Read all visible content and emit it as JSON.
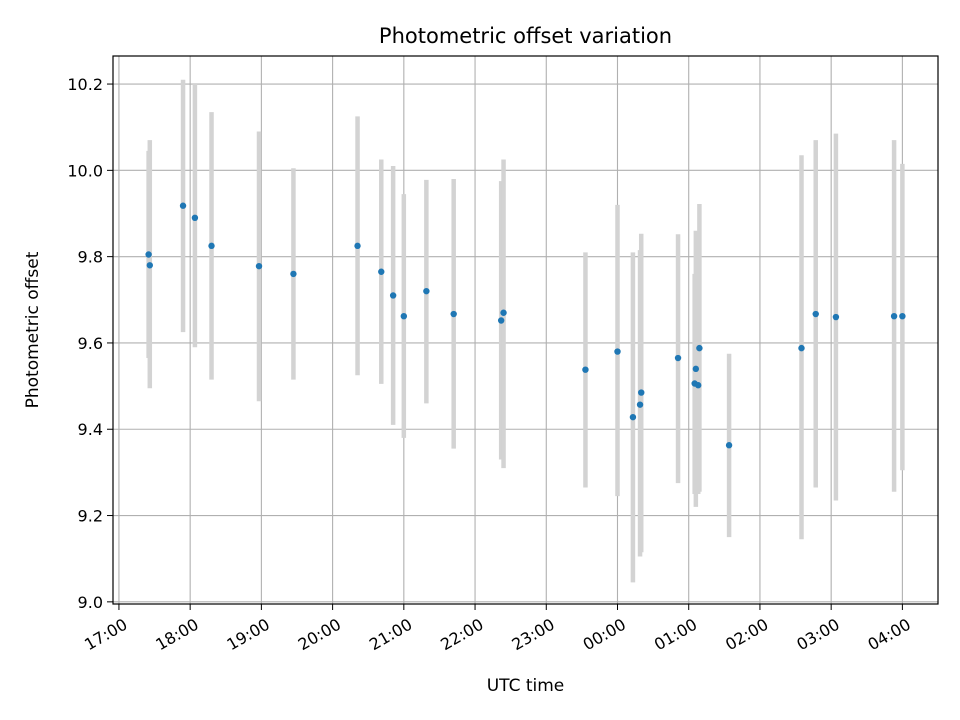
{
  "chart_data": {
    "type": "scatter",
    "title": "Photometric offset variation",
    "xlabel": "UTC time",
    "ylabel": "Photometric offset",
    "grid": true,
    "xlim": [
      "2023-01-01T16:55",
      "2023-01-02T04:30"
    ],
    "ylim": [
      8.995,
      10.265
    ],
    "x_ticks": [
      {
        "t": "2023-01-01T17:00",
        "label": "17:00"
      },
      {
        "t": "2023-01-01T18:00",
        "label": "18:00"
      },
      {
        "t": "2023-01-01T19:00",
        "label": "19:00"
      },
      {
        "t": "2023-01-01T20:00",
        "label": "20:00"
      },
      {
        "t": "2023-01-01T21:00",
        "label": "21:00"
      },
      {
        "t": "2023-01-01T22:00",
        "label": "22:00"
      },
      {
        "t": "2023-01-01T23:00",
        "label": "23:00"
      },
      {
        "t": "2023-01-02T00:00",
        "label": "00:00"
      },
      {
        "t": "2023-01-02T01:00",
        "label": "01:00"
      },
      {
        "t": "2023-01-02T02:00",
        "label": "02:00"
      },
      {
        "t": "2023-01-02T03:00",
        "label": "03:00"
      },
      {
        "t": "2023-01-02T04:00",
        "label": "04:00"
      }
    ],
    "y_ticks": [
      {
        "v": 9.0,
        "label": "9.0"
      },
      {
        "v": 9.2,
        "label": "9.2"
      },
      {
        "v": 9.4,
        "label": "9.4"
      },
      {
        "v": 9.6,
        "label": "9.6"
      },
      {
        "v": 9.8,
        "label": "9.8"
      },
      {
        "v": 10.0,
        "label": "10.0"
      },
      {
        "v": 10.2,
        "label": "10.2"
      }
    ],
    "series": [
      {
        "marker_color": "#1f77b4",
        "errorbar_color": "#d3d3d3",
        "points": [
          {
            "t": "2023-01-01T17:25",
            "y": 9.805,
            "ylow": 9.565,
            "yhigh": 10.045
          },
          {
            "t": "2023-01-01T17:26",
            "y": 9.78,
            "ylow": 9.495,
            "yhigh": 10.07
          },
          {
            "t": "2023-01-01T17:54",
            "y": 9.918,
            "ylow": 9.625,
            "yhigh": 10.21
          },
          {
            "t": "2023-01-01T18:04",
            "y": 9.89,
            "ylow": 9.59,
            "yhigh": 10.2
          },
          {
            "t": "2023-01-01T18:18",
            "y": 9.825,
            "ylow": 9.515,
            "yhigh": 10.135
          },
          {
            "t": "2023-01-01T18:58",
            "y": 9.778,
            "ylow": 9.465,
            "yhigh": 10.09
          },
          {
            "t": "2023-01-01T19:27",
            "y": 9.76,
            "ylow": 9.515,
            "yhigh": 10.005
          },
          {
            "t": "2023-01-01T20:21",
            "y": 9.825,
            "ylow": 9.525,
            "yhigh": 10.125
          },
          {
            "t": "2023-01-01T20:41",
            "y": 9.765,
            "ylow": 9.505,
            "yhigh": 10.025
          },
          {
            "t": "2023-01-01T20:51",
            "y": 9.71,
            "ylow": 9.41,
            "yhigh": 10.01
          },
          {
            "t": "2023-01-01T21:00",
            "y": 9.662,
            "ylow": 9.38,
            "yhigh": 9.945
          },
          {
            "t": "2023-01-01T21:19",
            "y": 9.72,
            "ylow": 9.46,
            "yhigh": 9.978
          },
          {
            "t": "2023-01-01T21:42",
            "y": 9.667,
            "ylow": 9.355,
            "yhigh": 9.98
          },
          {
            "t": "2023-01-01T22:22",
            "y": 9.652,
            "ylow": 9.33,
            "yhigh": 9.975
          },
          {
            "t": "2023-01-01T22:24",
            "y": 9.67,
            "ylow": 9.31,
            "yhigh": 10.025
          },
          {
            "t": "2023-01-01T23:33",
            "y": 9.538,
            "ylow": 9.265,
            "yhigh": 9.81
          },
          {
            "t": "2023-01-02T00:00",
            "y": 9.58,
            "ylow": 9.245,
            "yhigh": 9.92
          },
          {
            "t": "2023-01-02T00:13",
            "y": 9.428,
            "ylow": 9.045,
            "yhigh": 9.81
          },
          {
            "t": "2023-01-02T00:19",
            "y": 9.457,
            "ylow": 9.105,
            "yhigh": 9.815
          },
          {
            "t": "2023-01-02T00:20",
            "y": 9.485,
            "ylow": 9.115,
            "yhigh": 9.853
          },
          {
            "t": "2023-01-02T00:51",
            "y": 9.565,
            "ylow": 9.275,
            "yhigh": 9.852
          },
          {
            "t": "2023-01-02T01:05",
            "y": 9.506,
            "ylow": 9.25,
            "yhigh": 9.76
          },
          {
            "t": "2023-01-02T01:06",
            "y": 9.54,
            "ylow": 9.22,
            "yhigh": 9.86
          },
          {
            "t": "2023-01-02T01:08",
            "y": 9.502,
            "ylow": 9.25,
            "yhigh": 9.755
          },
          {
            "t": "2023-01-02T01:09",
            "y": 9.588,
            "ylow": 9.255,
            "yhigh": 9.922
          },
          {
            "t": "2023-01-02T01:34",
            "y": 9.363,
            "ylow": 9.15,
            "yhigh": 9.575
          },
          {
            "t": "2023-01-02T02:35",
            "y": 9.588,
            "ylow": 9.145,
            "yhigh": 10.035
          },
          {
            "t": "2023-01-02T02:47",
            "y": 9.667,
            "ylow": 9.265,
            "yhigh": 10.07
          },
          {
            "t": "2023-01-02T03:04",
            "y": 9.66,
            "ylow": 9.235,
            "yhigh": 10.085
          },
          {
            "t": "2023-01-02T03:53",
            "y": 9.662,
            "ylow": 9.255,
            "yhigh": 10.07
          },
          {
            "t": "2023-01-02T04:00",
            "y": 9.662,
            "ylow": 9.305,
            "yhigh": 10.015
          }
        ]
      }
    ]
  }
}
